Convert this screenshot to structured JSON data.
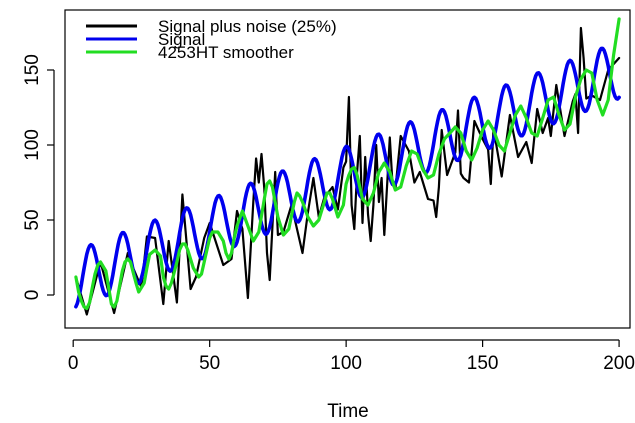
{
  "chart_data": {
    "type": "line",
    "title": "",
    "xlabel": "Time",
    "ylabel": "",
    "xlim": [
      -3,
      204
    ],
    "ylim": [
      -22,
      190
    ],
    "x_ticks": [
      0,
      50,
      100,
      150,
      200
    ],
    "x_tick_labels": [
      "0",
      "50",
      "100",
      "150",
      "200"
    ],
    "y_ticks": [
      0,
      50,
      100,
      150
    ],
    "y_tick_labels": [
      "0",
      "50",
      "100",
      "150"
    ],
    "grid": false,
    "legend_position": "top-left",
    "series": [
      {
        "name": "Signal plus noise (25%)",
        "color": "#000000",
        "x": [
          1,
          5,
          10,
          15,
          20,
          22,
          25,
          27,
          30,
          33,
          35,
          38,
          40,
          43,
          45,
          48,
          50,
          55,
          58,
          60,
          62,
          64,
          66,
          67,
          68,
          69,
          70,
          71,
          72,
          74,
          75,
          77,
          80,
          84,
          86,
          88,
          90,
          92,
          95,
          97,
          99,
          100,
          101,
          102,
          103,
          104,
          105,
          106,
          107,
          108,
          109,
          110,
          111,
          112,
          113,
          114,
          116,
          117,
          118,
          120,
          123,
          125,
          127,
          130,
          132,
          133,
          134,
          135,
          137,
          140,
          141,
          142,
          143,
          145,
          147,
          150,
          152,
          153,
          154,
          157,
          160,
          163,
          166,
          168,
          170,
          172,
          174,
          175,
          177,
          180,
          183,
          184,
          185,
          186,
          187,
          188,
          190,
          193,
          196,
          200
        ],
        "values": [
          12,
          -13,
          22,
          -12,
          28,
          18,
          5,
          39,
          38,
          -6,
          36,
          -5,
          67,
          4,
          12,
          38,
          48,
          20,
          24,
          56,
          44,
          -2,
          62,
          91,
          75,
          94,
          71,
          28,
          10,
          82,
          40,
          42,
          60,
          28,
          55,
          78,
          52,
          65,
          72,
          57,
          85,
          89,
          132,
          60,
          44,
          82,
          106,
          48,
          92,
          54,
          36,
          60,
          100,
          62,
          78,
          40,
          105,
          74,
          70,
          106,
          96,
          75,
          82,
          64,
          63,
          52,
          72,
          110,
          80,
          95,
          123,
          81,
          78,
          75,
          116,
          104,
          97,
          74,
          111,
          79,
          120,
          92,
          102,
          88,
          124,
          108,
          118,
          106,
          140,
          106,
          129,
          134,
          108,
          178,
          158,
          131,
          133,
          130,
          150,
          158
        ]
      },
      {
        "name": "Signal",
        "color": "#0000ee",
        "function": "10 + 0.7*x + 19*sin(2*pi*(x-3.5)/11.7)"
      },
      {
        "name": "4253HT smoother",
        "color": "#22dd22",
        "x": [
          1,
          2,
          3,
          4,
          5,
          6,
          7,
          8,
          9,
          10,
          12,
          14,
          15,
          16,
          17,
          18,
          19,
          20,
          21,
          22,
          23,
          24,
          26,
          27,
          28,
          30,
          32,
          33,
          34,
          35,
          36,
          38,
          39,
          40,
          41,
          42,
          44,
          46,
          47,
          48,
          49,
          50,
          51,
          53,
          55,
          56,
          57,
          58,
          59,
          60,
          62,
          64,
          66,
          68,
          70,
          71,
          72,
          73,
          75,
          77,
          79,
          81,
          82,
          83,
          84,
          86,
          88,
          90,
          92,
          93,
          94,
          95,
          97,
          99,
          100,
          101,
          102,
          103,
          104,
          105,
          106,
          108,
          110,
          112,
          114,
          116,
          118,
          120,
          122,
          124,
          126,
          128,
          130,
          132,
          134,
          136,
          138,
          140,
          142,
          144,
          146,
          148,
          150,
          152,
          154,
          156,
          158,
          160,
          162,
          164,
          166,
          168,
          170,
          172,
          174,
          176,
          178,
          180,
          182,
          184,
          186,
          188,
          190,
          192,
          194,
          196,
          198,
          200
        ],
        "values": [
          12,
          2,
          -4,
          -8,
          -9,
          -5,
          5,
          14,
          20,
          22,
          16,
          -6,
          -8,
          -4,
          6,
          16,
          22,
          24,
          22,
          15,
          8,
          2,
          8,
          18,
          27,
          30,
          26,
          12,
          6,
          4,
          8,
          22,
          30,
          34,
          34,
          30,
          18,
          12,
          14,
          22,
          30,
          38,
          42,
          42,
          36,
          28,
          24,
          28,
          38,
          46,
          56,
          46,
          36,
          42,
          64,
          74,
          76,
          72,
          52,
          40,
          44,
          62,
          68,
          66,
          62,
          52,
          46,
          50,
          62,
          68,
          68,
          64,
          52,
          60,
          74,
          80,
          84,
          85,
          80,
          72,
          64,
          60,
          68,
          82,
          88,
          82,
          70,
          72,
          86,
          96,
          94,
          84,
          78,
          80,
          94,
          104,
          108,
          112,
          108,
          96,
          90,
          98,
          110,
          116,
          110,
          100,
          96,
          108,
          120,
          126,
          118,
          108,
          106,
          118,
          130,
          132,
          120,
          110,
          114,
          132,
          144,
          150,
          148,
          130,
          120,
          130,
          160,
          184
        ]
      }
    ]
  }
}
